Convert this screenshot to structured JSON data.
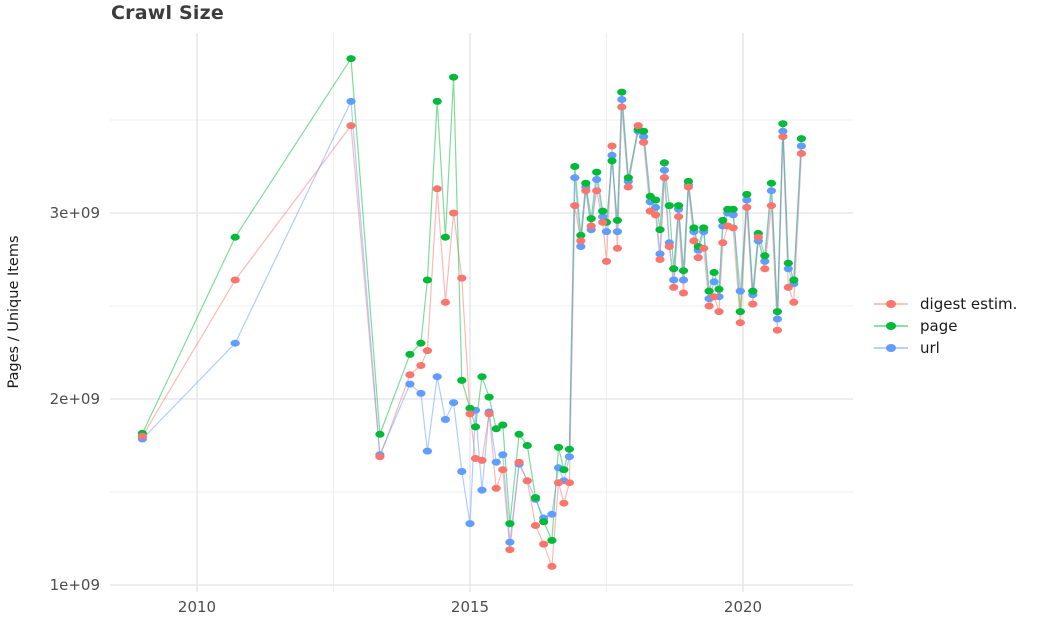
{
  "chart_data": {
    "type": "line",
    "title": "Crawl Size",
    "xlabel": "",
    "ylabel": "Pages / Unique Items",
    "grid": true,
    "legend_position": "right",
    "values_scale": 1000000000,
    "values_unit": "items (billions)",
    "xlim": [
      2008.6,
      2021.6
    ],
    "ylim_billions": [
      0.95,
      3.97
    ],
    "x_ticks": {
      "values": [
        2010,
        2015,
        2020
      ],
      "labels": [
        "2010",
        "2015",
        "2020"
      ],
      "minor": [
        2012.5,
        2017.5
      ]
    },
    "y_ticks": {
      "values_billions": [
        1,
        2,
        3
      ],
      "labels": [
        "1e+09",
        "2e+09",
        "3e+09"
      ],
      "minor_billions": [
        1.5,
        2.5,
        3.5
      ]
    },
    "x": [
      2009.0,
      2010.7,
      2012.82,
      2013.35,
      2013.9,
      2014.1,
      2014.22,
      2014.4,
      2014.55,
      2014.7,
      2014.85,
      2015.0,
      2015.1,
      2015.22,
      2015.35,
      2015.48,
      2015.6,
      2015.73,
      2015.9,
      2016.05,
      2016.2,
      2016.35,
      2016.5,
      2016.62,
      2016.72,
      2016.82,
      2016.92,
      2017.03,
      2017.12,
      2017.22,
      2017.32,
      2017.43,
      2017.5,
      2017.6,
      2017.7,
      2017.78,
      2017.9,
      2018.08,
      2018.18,
      2018.3,
      2018.4,
      2018.48,
      2018.56,
      2018.65,
      2018.73,
      2018.82,
      2018.91,
      2019.0,
      2019.1,
      2019.18,
      2019.28,
      2019.38,
      2019.47,
      2019.56,
      2019.63,
      2019.72,
      2019.82,
      2019.95,
      2020.07,
      2020.18,
      2020.28,
      2020.4,
      2020.52,
      2020.63,
      2020.73,
      2020.83,
      2020.93,
      2021.07
    ],
    "series": [
      {
        "name": "digest estim.",
        "color": "#F8766D",
        "values_billions": [
          1.8,
          2.64,
          3.47,
          1.69,
          2.13,
          2.18,
          2.26,
          3.13,
          2.52,
          3.0,
          2.65,
          1.92,
          1.68,
          1.67,
          1.92,
          1.52,
          1.62,
          1.19,
          1.66,
          1.56,
          1.32,
          1.22,
          1.1,
          1.55,
          1.44,
          1.55,
          3.04,
          2.85,
          3.12,
          2.93,
          3.12,
          2.95,
          2.74,
          3.36,
          2.81,
          3.57,
          3.14,
          3.47,
          3.38,
          3.01,
          2.99,
          2.75,
          3.19,
          2.82,
          2.6,
          2.98,
          2.57,
          3.14,
          2.85,
          2.76,
          2.81,
          2.5,
          2.55,
          2.47,
          2.84,
          2.93,
          2.92,
          2.41,
          3.03,
          2.51,
          2.87,
          2.7,
          3.04,
          2.37,
          3.41,
          2.6,
          2.52,
          3.32
        ]
      },
      {
        "name": "page",
        "color": "#00BA38",
        "values_billions": [
          1.815,
          2.87,
          3.83,
          1.81,
          2.24,
          2.3,
          2.64,
          3.6,
          2.87,
          3.73,
          2.1,
          1.95,
          1.85,
          2.12,
          2.01,
          1.84,
          1.86,
          1.33,
          1.81,
          1.75,
          1.47,
          1.34,
          1.24,
          1.74,
          1.62,
          1.73,
          3.25,
          2.88,
          3.16,
          2.97,
          3.22,
          3.01,
          2.95,
          3.28,
          2.96,
          3.65,
          3.19,
          3.45,
          3.44,
          3.09,
          3.07,
          2.91,
          3.27,
          3.04,
          2.7,
          3.04,
          2.69,
          3.17,
          2.92,
          2.82,
          2.92,
          2.58,
          2.68,
          2.59,
          2.96,
          3.02,
          3.02,
          2.47,
          3.1,
          2.58,
          2.89,
          2.77,
          3.16,
          2.47,
          3.48,
          2.73,
          2.64,
          3.4
        ]
      },
      {
        "name": "url",
        "color": "#619CFF",
        "values_billions": [
          1.785,
          2.3,
          3.6,
          1.7,
          2.08,
          2.03,
          1.72,
          2.12,
          1.89,
          1.98,
          1.61,
          1.33,
          1.94,
          1.51,
          1.93,
          1.66,
          1.7,
          1.23,
          1.65,
          1.56,
          1.46,
          1.36,
          1.38,
          1.63,
          1.56,
          1.69,
          3.19,
          2.82,
          3.14,
          2.91,
          3.18,
          2.98,
          2.9,
          3.31,
          2.9,
          3.61,
          3.17,
          3.44,
          3.41,
          3.06,
          3.03,
          2.78,
          3.23,
          2.84,
          2.64,
          3.02,
          2.64,
          3.15,
          2.9,
          2.8,
          2.9,
          2.54,
          2.63,
          2.55,
          2.93,
          3.0,
          2.99,
          2.58,
          3.07,
          2.56,
          2.85,
          2.74,
          3.12,
          2.43,
          3.44,
          2.7,
          2.62,
          3.36
        ]
      }
    ]
  },
  "legend": {
    "items": [
      {
        "label": "digest estim.",
        "color": "#F8766D"
      },
      {
        "label": "page",
        "color": "#00BA38"
      },
      {
        "label": "url",
        "color": "#619CFF"
      }
    ]
  },
  "style_colors": {
    "grid_major": "#e3e3e3",
    "grid_minor": "#efefef",
    "tick_text": "#4d4d4d",
    "title_text": "#3c3c3c"
  }
}
